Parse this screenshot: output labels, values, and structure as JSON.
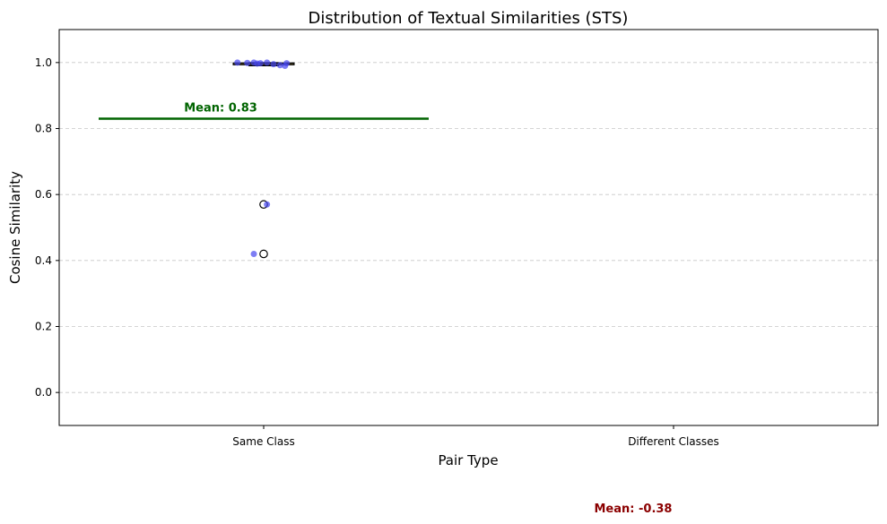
{
  "chart_data": {
    "type": "box",
    "title": "Distribution of Textual Similarities (STS)",
    "xlabel": "Pair Type",
    "ylabel": "Cosine Similarity",
    "categories": [
      "Same Class",
      "Different Classes"
    ],
    "ylim": [
      -0.1,
      1.1
    ],
    "yticks": [
      "0.0",
      "0.2",
      "0.4",
      "0.6",
      "0.8",
      "1.0"
    ],
    "grid": "y-dashed",
    "boxes": [
      {
        "category": "Same Class",
        "q1": 0.993,
        "median": 0.997,
        "q3": 0.999,
        "whisker_low": 0.99,
        "whisker_high": 1.0,
        "outliers": [
          0.57,
          0.42
        ]
      }
    ],
    "points": [
      {
        "category": "Same Class",
        "y": 1.0,
        "jitter": -0.08
      },
      {
        "category": "Same Class",
        "y": 0.999,
        "jitter": -0.05
      },
      {
        "category": "Same Class",
        "y": 1.0,
        "jitter": -0.03
      },
      {
        "category": "Same Class",
        "y": 0.998,
        "jitter": -0.01
      },
      {
        "category": "Same Class",
        "y": 1.0,
        "jitter": 0.01
      },
      {
        "category": "Same Class",
        "y": 0.995,
        "jitter": 0.03
      },
      {
        "category": "Same Class",
        "y": 0.992,
        "jitter": 0.05
      },
      {
        "category": "Same Class",
        "y": 0.998,
        "jitter": 0.07
      },
      {
        "category": "Same Class",
        "y": 0.99,
        "jitter": 0.065
      },
      {
        "category": "Same Class",
        "y": 0.997,
        "jitter": -0.02
      },
      {
        "category": "Same Class",
        "y": 0.57,
        "jitter": 0.01
      },
      {
        "category": "Same Class",
        "y": 0.42,
        "jitter": -0.03
      }
    ],
    "means": [
      {
        "category": "Same Class",
        "value": 0.83,
        "label": "Mean: 0.83",
        "color": "#006400"
      },
      {
        "category": "Different Classes",
        "value": -0.38,
        "label": "Mean: -0.38",
        "color": "#8b0000"
      }
    ],
    "colors": {
      "box_fill": "#c9ae62",
      "point": "#4646f0",
      "grid": "#c8c8c8"
    }
  }
}
